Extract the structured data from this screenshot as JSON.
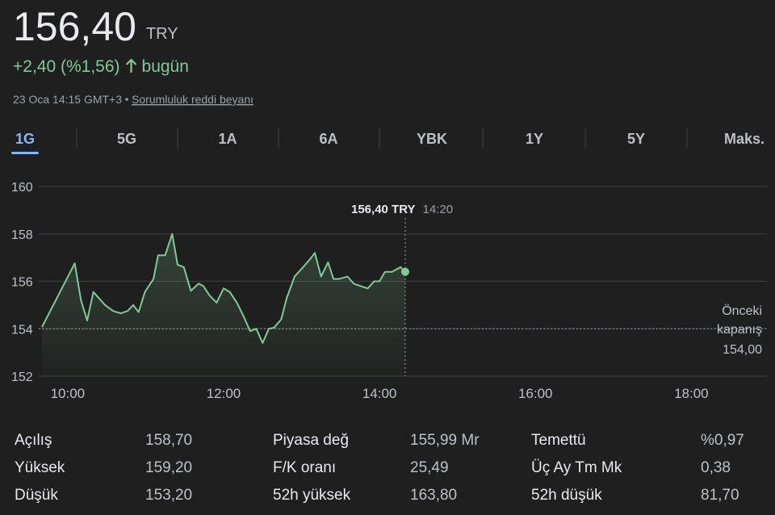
{
  "header": {
    "price": "156,40",
    "currency": "TRY",
    "change": "+2,40 (%1,56)",
    "period": "bugün",
    "timestamp": "23 Oca 14:15 GMT+3",
    "disclaimer": "Sorumluluk reddi beyanı"
  },
  "tabs": {
    "items": [
      "1G",
      "5G",
      "1A",
      "6A",
      "YBK",
      "1Y",
      "5Y",
      "Maks."
    ],
    "active": 0
  },
  "chart_data": {
    "type": "line",
    "color": "#81c995",
    "x": [
      9.67,
      10.09,
      10.17,
      10.25,
      10.33,
      10.48,
      10.58,
      10.68,
      10.77,
      10.84,
      10.91,
      10.99,
      11.1,
      11.16,
      11.25,
      11.34,
      11.41,
      11.49,
      11.58,
      11.68,
      11.74,
      11.82,
      11.91,
      12.0,
      12.08,
      12.17,
      12.26,
      12.34,
      12.42,
      12.5,
      12.58,
      12.65,
      12.74,
      12.81,
      12.91,
      13.02,
      13.1,
      13.17,
      13.25,
      13.34,
      13.41,
      13.48,
      13.59,
      13.67,
      13.76,
      13.85,
      13.93,
      14.0,
      14.07,
      14.16,
      14.27,
      14.33
    ],
    "values": [
      154.07,
      156.76,
      155.2,
      154.35,
      155.55,
      155.0,
      154.75,
      154.65,
      154.75,
      155.0,
      154.7,
      155.55,
      156.1,
      157.1,
      157.1,
      158.0,
      156.7,
      156.6,
      155.6,
      155.9,
      155.8,
      155.4,
      155.1,
      155.7,
      155.55,
      155.1,
      154.5,
      153.9,
      154.0,
      153.4,
      154.0,
      154.05,
      154.4,
      155.3,
      156.2,
      156.6,
      156.9,
      157.2,
      156.2,
      156.8,
      156.1,
      156.1,
      156.2,
      155.9,
      155.8,
      155.7,
      156.0,
      156.0,
      156.4,
      156.4,
      156.6,
      156.4
    ],
    "xlim": [
      9.67,
      18.97
    ],
    "xticks": [
      {
        "value": 10,
        "label": "10:00"
      },
      {
        "value": 12,
        "label": "12:00"
      },
      {
        "value": 14,
        "label": "14:00"
      },
      {
        "value": 16,
        "label": "16:00"
      },
      {
        "value": 18,
        "label": "18:00"
      }
    ],
    "ylim": [
      152,
      160
    ],
    "yticks": [
      152,
      154,
      156,
      158,
      160
    ],
    "grid": true,
    "reference_line": {
      "value": 154,
      "label": "Önceki kapanış",
      "value_label": "154,00"
    },
    "tooltip": {
      "price": "156,40 TRY",
      "time": "14:20"
    }
  },
  "stats": [
    {
      "label": "Açılış",
      "value": "158,70"
    },
    {
      "label": "Yüksek",
      "value": "159,20"
    },
    {
      "label": "Düşük",
      "value": "153,20"
    },
    {
      "label": "Piyasa değ",
      "value": "155,99 Mr"
    },
    {
      "label": "F/K oranı",
      "value": "25,49"
    },
    {
      "label": "52h yüksek",
      "value": "163,80"
    },
    {
      "label": "Temettü",
      "value": "%0,97"
    },
    {
      "label": "Üç Ay Tm Mk",
      "value": "0,38"
    },
    {
      "label": "52h düşük",
      "value": "81,70"
    }
  ]
}
